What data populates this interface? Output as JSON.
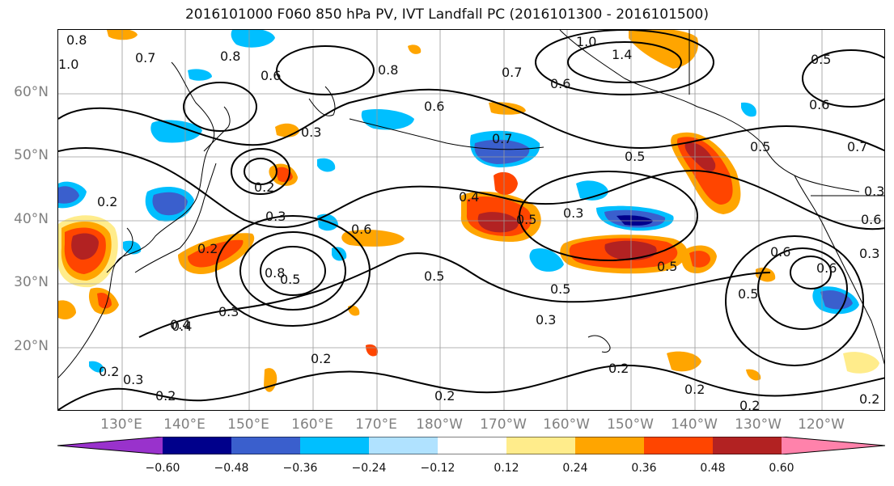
{
  "title": "2016101000 F060 850 hPa PV, IVT Landfall PC (2016101300 - 2016101500)",
  "map": {
    "lat_labels": [
      "60°N",
      "50°N",
      "40°N",
      "30°N",
      "20°N"
    ],
    "lon_labels": [
      "130°E",
      "140°E",
      "150°E",
      "160°E",
      "170°E",
      "180°W",
      "170°W",
      "160°W",
      "150°W",
      "140°W",
      "130°W",
      "120°W"
    ],
    "contour_labels": [
      "0.8",
      "1.0",
      "0.7",
      "0.8",
      "0.6",
      "0.8",
      "1.0",
      "1.4",
      "0.7",
      "0.6",
      "0.5",
      "0.6",
      "0.6",
      "0.5",
      "0.7",
      "0.3",
      "0.2",
      "0.2",
      "0.3",
      "0.4",
      "0.6",
      "0.5",
      "0.7",
      "0.5",
      "0.3",
      "0.4",
      "0.5",
      "0.2",
      "0.3",
      "0.8",
      "0.5",
      "0.6",
      "0.5",
      "0.5",
      "0.5",
      "0.6",
      "0.4",
      "0.3",
      "0.3",
      "0.2",
      "0.2",
      "0.2",
      "0.3",
      "0.2",
      "0.2",
      "0.2",
      "0.2",
      "0.2",
      "0.6",
      "0.3"
    ],
    "colors": {
      "coast": "#000000",
      "grid": "#9a9a9a",
      "contour": "#000000"
    }
  },
  "colorbar": {
    "ticks": [
      "−0.60",
      "−0.48",
      "−0.36",
      "−0.24",
      "−0.12",
      "0.12",
      "0.24",
      "0.36",
      "0.48",
      "0.60"
    ],
    "colors": [
      "#9932cc",
      "#00008b",
      "#3a5fcd",
      "#00bfff",
      "#b0e2ff",
      "#ffffff",
      "#ffec8b",
      "#ffa500",
      "#ff4500",
      "#b22222",
      "#ff82ab"
    ]
  }
}
